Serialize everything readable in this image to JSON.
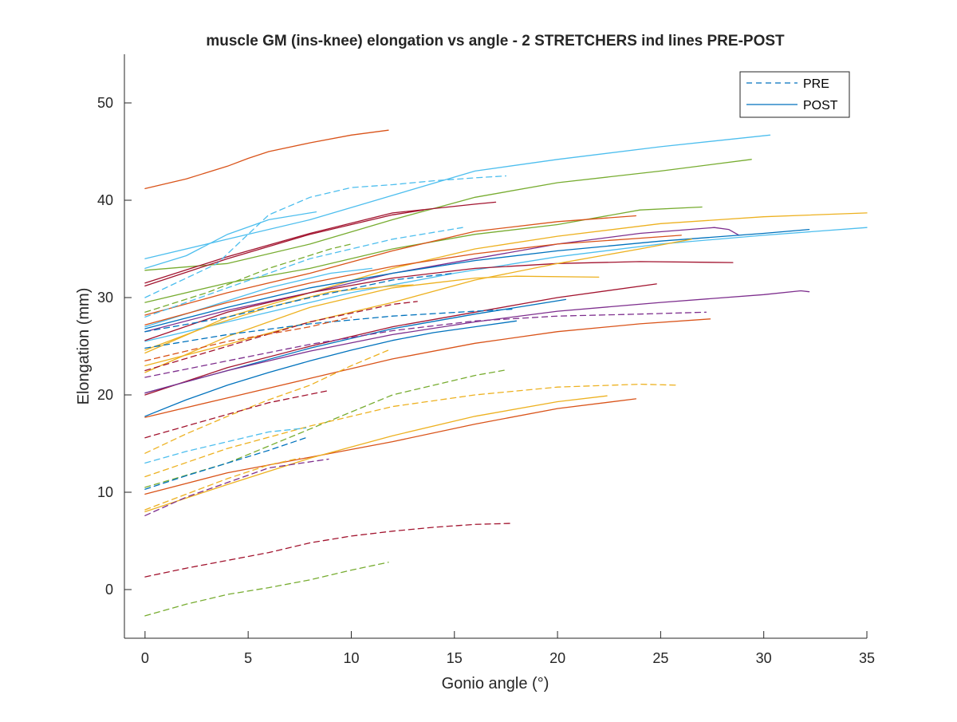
{
  "chart_data": {
    "type": "line",
    "title": "muscle GM (ins-knee) elongation vs angle - 2 STRETCHERS ind lines PRE-POST",
    "xlabel": "Gonio angle (°)",
    "ylabel": "Elongation (mm)",
    "xlim": [
      -1,
      35
    ],
    "ylim": [
      -5,
      55
    ],
    "xticks": [
      0,
      5,
      10,
      15,
      20,
      25,
      30,
      35
    ],
    "yticks": [
      0,
      10,
      20,
      30,
      40,
      50
    ],
    "grid": false,
    "legend": {
      "position": "top-right",
      "entries": [
        {
          "label": "PRE",
          "style": "dashed"
        },
        {
          "label": "POST",
          "style": "solid"
        }
      ]
    },
    "series": [
      {
        "group": "POST",
        "color": "#D95319",
        "x": [
          0,
          2,
          4,
          5,
          6,
          8,
          10,
          11.8
        ],
        "y": [
          41.2,
          42.2,
          43.5,
          44.3,
          45.0,
          45.9,
          46.7,
          47.2
        ]
      },
      {
        "group": "POST",
        "color": "#4DBEEE",
        "x": [
          0,
          4,
          8,
          12,
          16,
          20,
          25,
          30.3
        ],
        "y": [
          34.0,
          36.0,
          38.0,
          40.5,
          43.0,
          44.2,
          45.5,
          46.7
        ]
      },
      {
        "group": "POST",
        "color": "#77AC30",
        "x": [
          0,
          4,
          8,
          12,
          16,
          20,
          25,
          29.4
        ],
        "y": [
          32.8,
          33.5,
          35.5,
          38.0,
          40.3,
          41.8,
          43.0,
          44.2
        ]
      },
      {
        "group": "POST",
        "color": "#4DBEEE",
        "x": [
          0,
          2,
          4,
          6,
          8.3
        ],
        "y": [
          33.0,
          34.3,
          36.5,
          38.0,
          38.8
        ]
      },
      {
        "group": "POST",
        "color": "#A2142F",
        "x": [
          0,
          4,
          8,
          12,
          13.5
        ],
        "y": [
          31.2,
          34.0,
          36.5,
          38.5,
          39.0
        ]
      },
      {
        "group": "POST",
        "color": "#A2142F",
        "x": [
          0,
          4,
          8,
          12,
          16,
          17
        ],
        "y": [
          31.5,
          34.2,
          36.6,
          38.7,
          39.6,
          39.8
        ]
      },
      {
        "group": "POST",
        "color": "#77AC30",
        "x": [
          0,
          4,
          8,
          12,
          16,
          20,
          24,
          27
        ],
        "y": [
          29.5,
          31.5,
          33.0,
          35.0,
          36.5,
          37.5,
          39.0,
          39.3
        ]
      },
      {
        "group": "POST",
        "color": "#D95319",
        "x": [
          0,
          4,
          8,
          12,
          16,
          20,
          23.8
        ],
        "y": [
          28.2,
          30.5,
          32.5,
          34.8,
          36.8,
          37.8,
          38.4
        ]
      },
      {
        "group": "POST",
        "color": "#EDB120",
        "x": [
          0,
          4,
          8,
          12,
          16,
          20,
          25,
          30,
          35
        ],
        "y": [
          24.3,
          28.0,
          30.5,
          33.0,
          35.0,
          36.3,
          37.6,
          38.3,
          38.7
        ]
      },
      {
        "group": "POST",
        "color": "#7E2F8E",
        "x": [
          0,
          4,
          8,
          12,
          16,
          20,
          24,
          27.6,
          28.3,
          28.8
        ],
        "y": [
          26.5,
          28.7,
          30.5,
          32.5,
          34.0,
          35.5,
          36.6,
          37.2,
          37.0,
          36.4
        ]
      },
      {
        "group": "POST",
        "color": "#0072BD",
        "x": [
          0,
          4,
          8,
          12,
          16,
          20,
          25,
          30,
          32.2
        ],
        "y": [
          26.8,
          29.0,
          31.0,
          32.5,
          33.8,
          34.8,
          35.8,
          36.6,
          37.0
        ]
      },
      {
        "group": "POST",
        "color": "#4DBEEE",
        "x": [
          0,
          5,
          10,
          15,
          20,
          25,
          30,
          35
        ],
        "y": [
          25.5,
          28.0,
          30.5,
          32.5,
          34.2,
          35.5,
          36.4,
          37.2
        ]
      },
      {
        "group": "POST",
        "color": "#EDB120",
        "x": [
          0,
          4,
          8,
          12,
          14,
          16,
          18,
          22
        ],
        "y": [
          22.3,
          26.0,
          29.0,
          31.0,
          31.5,
          32.0,
          32.2,
          32.1
        ]
      },
      {
        "group": "POST",
        "color": "#A2142F",
        "x": [
          0,
          4,
          8,
          12,
          16,
          20,
          24,
          28.5
        ],
        "y": [
          25.6,
          28.5,
          30.5,
          32.0,
          33.0,
          33.5,
          33.7,
          33.6
        ]
      },
      {
        "group": "POST",
        "color": "#0072BD",
        "x": [
          0,
          4,
          8,
          12,
          16,
          20.4
        ],
        "y": [
          20.2,
          22.5,
          24.8,
          26.8,
          28.3,
          29.8
        ]
      },
      {
        "group": "POST",
        "color": "#A2142F",
        "x": [
          0,
          4,
          8,
          12,
          16,
          20,
          24.8
        ],
        "y": [
          20.0,
          22.8,
          25.0,
          27.0,
          28.5,
          30.0,
          31.4
        ]
      },
      {
        "group": "POST",
        "color": "#7E2F8E",
        "x": [
          0,
          4,
          8,
          12,
          16,
          20,
          25,
          30,
          31.8,
          32.2
        ],
        "y": [
          20.2,
          22.5,
          24.5,
          26.2,
          27.5,
          28.6,
          29.5,
          30.3,
          30.7,
          30.6
        ]
      },
      {
        "group": "POST",
        "color": "#0072BD",
        "x": [
          0,
          2,
          4,
          6,
          8,
          10,
          12,
          14,
          16,
          18
        ],
        "y": [
          17.8,
          19.5,
          21.0,
          22.3,
          23.5,
          24.6,
          25.6,
          26.4,
          27.0,
          27.6
        ]
      },
      {
        "group": "POST",
        "color": "#D95319",
        "x": [
          0,
          4,
          8,
          12,
          16,
          20,
          24,
          27.4
        ],
        "y": [
          17.7,
          19.7,
          21.7,
          23.7,
          25.3,
          26.5,
          27.3,
          27.8
        ]
      },
      {
        "group": "POST",
        "color": "#D95319",
        "x": [
          0,
          4,
          8,
          12,
          16,
          20,
          23.8
        ],
        "y": [
          9.8,
          12.0,
          13.6,
          15.2,
          17.0,
          18.6,
          19.6
        ]
      },
      {
        "group": "POST",
        "color": "#EDB120",
        "x": [
          0,
          4,
          8,
          12,
          16,
          20,
          22.4
        ],
        "y": [
          8.0,
          10.8,
          13.5,
          15.8,
          17.8,
          19.3,
          19.9
        ]
      },
      {
        "group": "POST",
        "color": "#4DBEEE",
        "x": [
          0,
          3,
          6,
          9,
          11
        ],
        "y": [
          27.0,
          29.0,
          31.0,
          32.5,
          33.0
        ]
      },
      {
        "group": "POST",
        "color": "#EDB120",
        "x": [
          0,
          3,
          6,
          9,
          12,
          13
        ],
        "y": [
          24.6,
          27.0,
          29.0,
          30.6,
          31.2,
          31.3
        ]
      },
      {
        "group": "POST",
        "color": "#EDB120",
        "x": [
          0,
          4,
          8,
          12,
          16,
          20,
          24,
          26.5
        ],
        "y": [
          23.0,
          25.2,
          27.5,
          29.5,
          31.8,
          33.5,
          35.0,
          36.0
        ]
      },
      {
        "group": "POST",
        "color": "#D95319",
        "x": [
          0,
          4,
          8,
          12,
          16,
          20,
          24,
          26
        ],
        "y": [
          27.2,
          29.5,
          31.5,
          33.2,
          34.5,
          35.5,
          36.1,
          36.4
        ]
      },
      {
        "group": "PRE",
        "color": "#4DBEEE",
        "x": [
          0,
          2,
          3.5,
          4.5,
          6,
          8,
          10,
          12,
          14,
          16,
          17.5
        ],
        "y": [
          30.0,
          32.0,
          33.5,
          35.5,
          38.5,
          40.3,
          41.3,
          41.6,
          42.0,
          42.3,
          42.5
        ]
      },
      {
        "group": "PRE",
        "color": "#4DBEEE",
        "x": [
          0,
          4,
          8,
          12,
          15.4
        ],
        "y": [
          28.0,
          31.0,
          34.0,
          36.0,
          37.2
        ]
      },
      {
        "group": "PRE",
        "color": "#77AC30",
        "x": [
          0,
          3,
          6,
          9,
          10
        ],
        "y": [
          28.5,
          30.5,
          33.0,
          35.0,
          35.5
        ]
      },
      {
        "group": "PRE",
        "color": "#A2142F",
        "x": [
          0,
          4,
          8,
          12,
          13.2
        ],
        "y": [
          22.5,
          25.0,
          27.5,
          29.3,
          29.6
        ]
      },
      {
        "group": "PRE",
        "color": "#0072BD",
        "x": [
          0,
          4,
          8,
          12,
          16,
          17.8
        ],
        "y": [
          24.8,
          26.2,
          27.3,
          28.1,
          28.6,
          28.8
        ]
      },
      {
        "group": "PRE",
        "color": "#7E2F8E",
        "x": [
          0,
          4,
          8,
          12,
          16,
          20,
          24,
          27.2
        ],
        "y": [
          21.8,
          23.5,
          25.2,
          26.6,
          27.6,
          28.1,
          28.3,
          28.5
        ]
      },
      {
        "group": "PRE",
        "color": "#0072BD",
        "x": [
          0,
          4,
          8,
          12,
          15
        ],
        "y": [
          26.5,
          28.0,
          30.0,
          31.8,
          32.5
        ]
      },
      {
        "group": "PRE",
        "color": "#EDB120",
        "x": [
          0,
          2,
          4,
          6,
          8,
          10,
          11.8
        ],
        "y": [
          14.0,
          16.0,
          17.8,
          19.5,
          21.0,
          23.0,
          24.6
        ]
      },
      {
        "group": "PRE",
        "color": "#A2142F",
        "x": [
          0,
          2,
          4,
          6,
          8.8
        ],
        "y": [
          15.6,
          16.8,
          18.0,
          19.2,
          20.4
        ]
      },
      {
        "group": "PRE",
        "color": "#77AC30",
        "x": [
          0,
          4,
          8,
          12,
          16,
          17.6
        ],
        "y": [
          10.5,
          13.0,
          16.5,
          20.0,
          22.0,
          22.6
        ]
      },
      {
        "group": "PRE",
        "color": "#EDB120",
        "x": [
          0,
          4,
          8,
          12,
          16,
          20,
          24,
          25.8
        ],
        "y": [
          11.6,
          14.5,
          16.8,
          18.8,
          20.0,
          20.8,
          21.1,
          21.0
        ]
      },
      {
        "group": "PRE",
        "color": "#4DBEEE",
        "x": [
          0,
          2,
          4,
          6,
          7.8
        ],
        "y": [
          13.0,
          14.2,
          15.2,
          16.2,
          16.6
        ]
      },
      {
        "group": "PRE",
        "color": "#0072BD",
        "x": [
          0,
          2,
          4,
          6,
          7.8
        ],
        "y": [
          10.3,
          11.7,
          13.0,
          14.3,
          15.6
        ]
      },
      {
        "group": "PRE",
        "color": "#7E2F8E",
        "x": [
          0,
          2,
          4,
          6,
          8.9
        ],
        "y": [
          7.6,
          9.5,
          11.0,
          12.5,
          13.4
        ]
      },
      {
        "group": "PRE",
        "color": "#EDB120",
        "x": [
          0,
          2,
          4,
          6,
          7.5
        ],
        "y": [
          8.2,
          9.8,
          11.4,
          12.8,
          13.5
        ]
      },
      {
        "group": "PRE",
        "color": "#A2142F",
        "x": [
          0,
          2,
          4,
          6,
          8,
          10,
          12,
          14,
          16,
          17.8
        ],
        "y": [
          1.3,
          2.2,
          3.0,
          3.8,
          4.8,
          5.5,
          6.0,
          6.4,
          6.7,
          6.8
        ]
      },
      {
        "group": "PRE",
        "color": "#77AC30",
        "x": [
          0,
          2,
          4,
          6,
          8,
          10,
          11.8
        ],
        "y": [
          -2.7,
          -1.5,
          -0.5,
          0.2,
          1.0,
          2.0,
          2.8
        ]
      },
      {
        "group": "PRE",
        "color": "#D95319",
        "x": [
          0,
          4,
          8,
          10
        ],
        "y": [
          23.5,
          25.5,
          27.0,
          28.0
        ]
      }
    ]
  }
}
